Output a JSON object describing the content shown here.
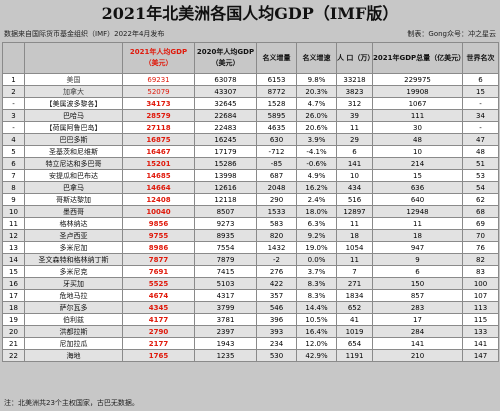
{
  "title": "2021年北美洲各国人均GDP（IMF版）",
  "source": "数据来自国际货币基金组织（IMF）2022年4月发布",
  "credit": "制表：Gong众号：冲之星云",
  "footer": "注：北美洲共23个主权国家，古巴无数据。",
  "headers": {
    "rank": "",
    "name": "",
    "pc2021": "2021年人均GDP（美元）",
    "pc2020": "2020年人均GDP（美元）",
    "nominal_inc": "名义增量",
    "nominal_growth": "名义增速",
    "pop": "人 口（万）",
    "gdp2021": "2021年GDP总量（亿美元）",
    "world_rank": "世界名次"
  },
  "rows": [
    {
      "rank": "1",
      "name": "美国",
      "pc2021": "69231",
      "pc2020": "63078",
      "inc": "6153",
      "growth": "9.8%",
      "pop": "33218",
      "gdp": "229975",
      "wr": "6"
    },
    {
      "rank": "2",
      "name": "加拿大",
      "pc2021": "52079",
      "pc2020": "43307",
      "inc": "8772",
      "growth": "20.3%",
      "pop": "3823",
      "gdp": "19908",
      "wr": "15"
    },
    {
      "rank": "-",
      "name": "【美属波多黎各】",
      "pc2021": "34173",
      "pc2020": "32645",
      "inc": "1528",
      "growth": "4.7%",
      "pop": "312",
      "gdp": "1067",
      "wr": "-"
    },
    {
      "rank": "3",
      "name": "巴哈马",
      "pc2021": "28579",
      "pc2020": "22684",
      "inc": "5895",
      "growth": "26.0%",
      "pop": "39",
      "gdp": "111",
      "wr": "34"
    },
    {
      "rank": "-",
      "name": "【荷属阿鲁巴岛】",
      "pc2021": "27118",
      "pc2020": "22483",
      "inc": "4635",
      "growth": "20.6%",
      "pop": "11",
      "gdp": "30",
      "wr": "-"
    },
    {
      "rank": "4",
      "name": "巴巴多斯",
      "pc2021": "16875",
      "pc2020": "16245",
      "inc": "630",
      "growth": "3.9%",
      "pop": "29",
      "gdp": "48",
      "wr": "47"
    },
    {
      "rank": "5",
      "name": "圣基茨和尼维斯",
      "pc2021": "16467",
      "pc2020": "17179",
      "inc": "-712",
      "growth": "-4.1%",
      "pop": "6",
      "gdp": "10",
      "wr": "48"
    },
    {
      "rank": "6",
      "name": "特立尼达和多巴哥",
      "pc2021": "15201",
      "pc2020": "15286",
      "inc": "-85",
      "growth": "-0.6%",
      "pop": "141",
      "gdp": "214",
      "wr": "51"
    },
    {
      "rank": "7",
      "name": "安提瓜和巴布达",
      "pc2021": "14685",
      "pc2020": "13998",
      "inc": "687",
      "growth": "4.9%",
      "pop": "10",
      "gdp": "15",
      "wr": "53"
    },
    {
      "rank": "8",
      "name": "巴拿马",
      "pc2021": "14664",
      "pc2020": "12616",
      "inc": "2048",
      "growth": "16.2%",
      "pop": "434",
      "gdp": "636",
      "wr": "54"
    },
    {
      "rank": "9",
      "name": "哥斯达黎加",
      "pc2021": "12408",
      "pc2020": "12118",
      "inc": "290",
      "growth": "2.4%",
      "pop": "516",
      "gdp": "640",
      "wr": "62"
    },
    {
      "rank": "10",
      "name": "墨西哥",
      "pc2021": "10040",
      "pc2020": "8507",
      "inc": "1533",
      "growth": "18.0%",
      "pop": "12897",
      "gdp": "12948",
      "wr": "68"
    },
    {
      "rank": "11",
      "name": "格林纳达",
      "pc2021": "9856",
      "pc2020": "9273",
      "inc": "583",
      "growth": "6.3%",
      "pop": "11",
      "gdp": "11",
      "wr": "69"
    },
    {
      "rank": "12",
      "name": "圣卢西亚",
      "pc2021": "9755",
      "pc2020": "8935",
      "inc": "820",
      "growth": "9.2%",
      "pop": "18",
      "gdp": "18",
      "wr": "70"
    },
    {
      "rank": "13",
      "name": "多米尼加",
      "pc2021": "8986",
      "pc2020": "7554",
      "inc": "1432",
      "growth": "19.0%",
      "pop": "1054",
      "gdp": "947",
      "wr": "76"
    },
    {
      "rank": "14",
      "name": "圣文森特和格林纳丁斯",
      "pc2021": "7877",
      "pc2020": "7879",
      "inc": "-2",
      "growth": "0.0%",
      "pop": "11",
      "gdp": "9",
      "wr": "82"
    },
    {
      "rank": "15",
      "name": "多米尼克",
      "pc2021": "7691",
      "pc2020": "7415",
      "inc": "276",
      "growth": "3.7%",
      "pop": "7",
      "gdp": "6",
      "wr": "83"
    },
    {
      "rank": "16",
      "name": "牙买加",
      "pc2021": "5525",
      "pc2020": "5103",
      "inc": "422",
      "growth": "8.3%",
      "pop": "271",
      "gdp": "150",
      "wr": "100"
    },
    {
      "rank": "17",
      "name": "危地马拉",
      "pc2021": "4674",
      "pc2020": "4317",
      "inc": "357",
      "growth": "8.3%",
      "pop": "1834",
      "gdp": "857",
      "wr": "107"
    },
    {
      "rank": "18",
      "name": "萨尔瓦多",
      "pc2021": "4345",
      "pc2020": "3799",
      "inc": "546",
      "growth": "14.4%",
      "pop": "652",
      "gdp": "283",
      "wr": "113"
    },
    {
      "rank": "19",
      "name": "伯利兹",
      "pc2021": "4177",
      "pc2020": "3781",
      "inc": "396",
      "growth": "10.5%",
      "pop": "41",
      "gdp": "17",
      "wr": "115"
    },
    {
      "rank": "20",
      "name": "洪都拉斯",
      "pc2021": "2790",
      "pc2020": "2397",
      "inc": "393",
      "growth": "16.4%",
      "pop": "1019",
      "gdp": "284",
      "wr": "133"
    },
    {
      "rank": "21",
      "name": "尼加拉瓜",
      "pc2021": "2177",
      "pc2020": "1943",
      "inc": "234",
      "growth": "12.0%",
      "pop": "654",
      "gdp": "141",
      "wr": "141"
    },
    {
      "rank": "22",
      "name": "海地",
      "pc2021": "1765",
      "pc2020": "1235",
      "inc": "530",
      "growth": "42.9%",
      "pop": "1191",
      "gdp": "210",
      "wr": "147"
    }
  ]
}
